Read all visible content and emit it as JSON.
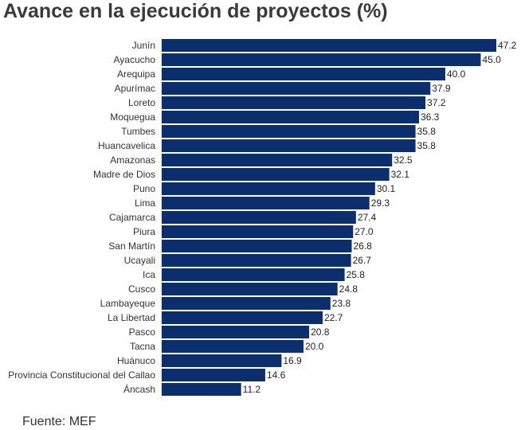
{
  "chart_data": {
    "type": "bar",
    "orientation": "horizontal",
    "title": "Avance en la ejecución de proyectos (%)",
    "xlabel": "",
    "ylabel": "",
    "xlim": [
      0,
      47.2
    ],
    "grid": false,
    "legend": "none",
    "bar_color": "#0a2e6e",
    "categories": [
      "Junín",
      "Ayacucho",
      "Arequipa",
      "Apurímac",
      "Loreto",
      "Moquegua",
      "Tumbes",
      "Huancavelica",
      "Amazonas",
      "Madre de Dios",
      "Puno",
      "Lima",
      "Cajamarca",
      "Piura",
      "San Martín",
      "Ucayali",
      "Ica",
      "Cusco",
      "Lambayeque",
      "La Libertad",
      "Pasco",
      "Tacna",
      "Huánuco",
      "Provincia Constitucional del Callao",
      "Áncash"
    ],
    "values": [
      47.2,
      45.0,
      40.0,
      37.9,
      37.2,
      36.3,
      35.8,
      35.8,
      32.5,
      32.1,
      30.1,
      29.3,
      27.4,
      27.0,
      26.8,
      26.7,
      25.8,
      24.8,
      23.8,
      22.7,
      20.8,
      20.0,
      16.9,
      14.6,
      11.2
    ],
    "value_labels": [
      "47.2",
      "45.0",
      "40.0",
      "37.9",
      "37.2",
      "36.3",
      "35.8",
      "35.8",
      "32.5",
      "32.1",
      "30.1",
      "29.3",
      "27.4",
      "27.0",
      "26.8",
      "26.7",
      "25.8",
      "24.8",
      "23.8",
      "22.7",
      "20.8",
      "20.0",
      "16.9",
      "14.6",
      "11.2"
    ]
  },
  "footer": {
    "source": "Fuente: MEF"
  }
}
